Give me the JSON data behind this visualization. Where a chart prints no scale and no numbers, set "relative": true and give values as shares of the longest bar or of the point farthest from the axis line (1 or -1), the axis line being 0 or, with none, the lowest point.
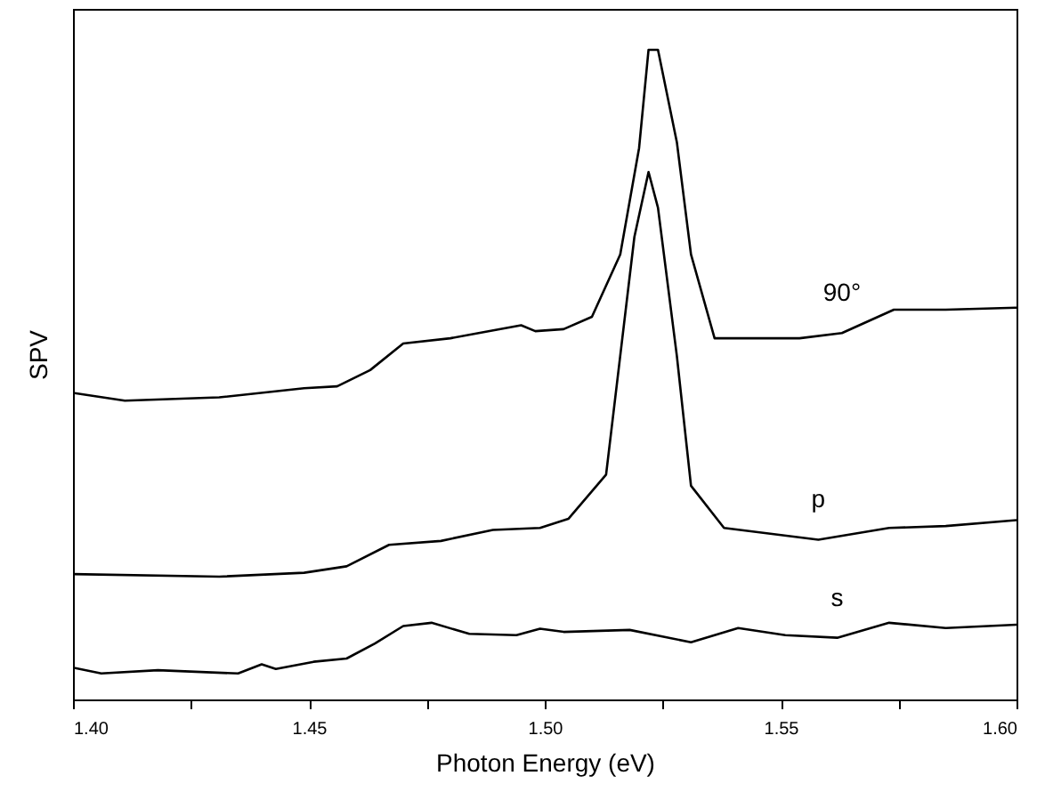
{
  "chart_data": {
    "type": "line",
    "xlabel": "Photon Energy (eV)",
    "ylabel": "SPV",
    "relative": true,
    "grid": false,
    "xlim": [
      1.4,
      1.6
    ],
    "xticks": [
      {
        "value": 1.4,
        "label": "1.40"
      },
      {
        "value": 1.425,
        "label": null
      },
      {
        "value": 1.45,
        "label": "1.45"
      },
      {
        "value": 1.475,
        "label": null
      },
      {
        "value": 1.5,
        "label": "1.50"
      },
      {
        "value": 1.525,
        "label": null
      },
      {
        "value": 1.55,
        "label": "1.55"
      },
      {
        "value": 1.575,
        "label": null
      },
      {
        "value": 1.6,
        "label": "1.60"
      }
    ],
    "series": [
      {
        "name": "90°",
        "color": "#000000",
        "x": [
          1.4,
          1.411,
          1.431,
          1.449,
          1.456,
          1.463,
          1.47,
          1.48,
          1.486,
          1.495,
          1.498,
          1.504,
          1.51,
          1.516,
          1.52,
          1.522,
          1.524,
          1.528,
          1.531,
          1.536,
          1.554,
          1.563,
          1.574,
          1.585,
          1.6
        ],
        "values": [
          0.472,
          0.46,
          0.465,
          0.479,
          0.482,
          0.507,
          0.548,
          0.556,
          0.564,
          0.576,
          0.567,
          0.57,
          0.589,
          0.685,
          0.849,
          1.0,
          1.0,
          0.858,
          0.685,
          0.556,
          0.556,
          0.564,
          0.6,
          0.6,
          0.603
        ]
      },
      {
        "name": "p",
        "color": "#000000",
        "x": [
          1.4,
          1.431,
          1.449,
          1.458,
          1.467,
          1.478,
          1.489,
          1.499,
          1.505,
          1.513,
          1.516,
          1.519,
          1.522,
          1.524,
          1.528,
          1.531,
          1.538,
          1.558,
          1.573,
          1.585,
          1.6
        ],
        "values": [
          0.193,
          0.189,
          0.195,
          0.205,
          0.238,
          0.244,
          0.261,
          0.264,
          0.278,
          0.346,
          0.529,
          0.712,
          0.812,
          0.757,
          0.529,
          0.329,
          0.264,
          0.246,
          0.264,
          0.267,
          0.276
        ]
      },
      {
        "name": "s",
        "color": "#000000",
        "x": [
          1.4,
          1.406,
          1.418,
          1.435,
          1.44,
          1.443,
          1.451,
          1.458,
          1.464,
          1.47,
          1.476,
          1.484,
          1.494,
          1.499,
          1.504,
          1.518,
          1.531,
          1.541,
          1.551,
          1.562,
          1.573,
          1.585,
          1.6
        ],
        "values": [
          0.049,
          0.04,
          0.045,
          0.04,
          0.054,
          0.047,
          0.058,
          0.063,
          0.086,
          0.113,
          0.118,
          0.101,
          0.099,
          0.109,
          0.104,
          0.107,
          0.088,
          0.11,
          0.099,
          0.095,
          0.118,
          0.11,
          0.115
        ]
      }
    ]
  }
}
